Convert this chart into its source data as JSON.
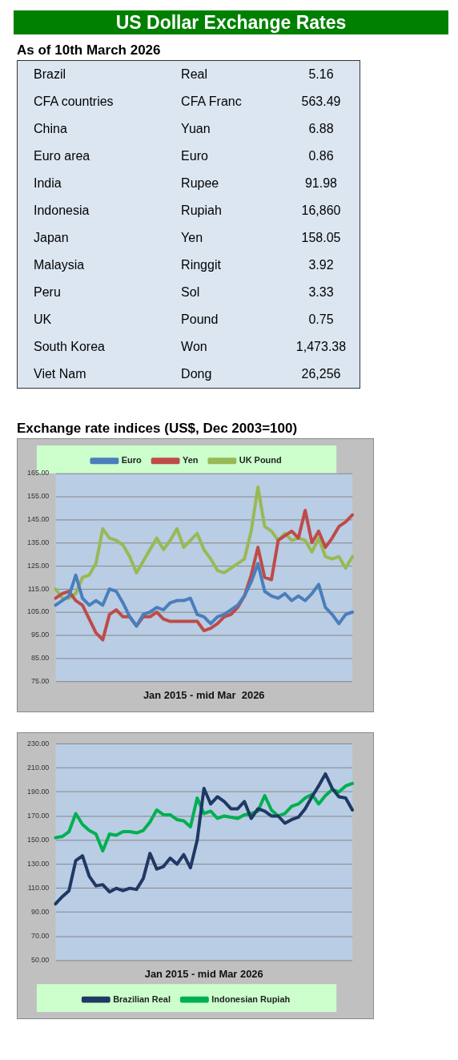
{
  "chart_data": [
    {
      "type": "other",
      "title": "US Dollar Exchange Rates",
      "subtitle": "As of 10th March 2026",
      "annotations": [
        "Brazil",
        "Real",
        "5.16",
        "CFA countries",
        "CFA Franc",
        "563.49",
        "China",
        "Yuan",
        "6.88",
        "Euro area",
        "Euro",
        "0.86",
        "India",
        "Rupee",
        "91.98",
        "Indonesia",
        "Rupiah",
        "16,860",
        "Japan",
        "Yen",
        "158.05",
        "Malaysia",
        "Ringgit",
        "3.92",
        "Peru",
        "Sol",
        "3.33",
        "UK",
        "Pound",
        "0.75",
        "South Korea",
        "Won",
        "1,473.38",
        "Viet Nam",
        "Dong",
        "26,256"
      ]
    },
    {
      "type": "line",
      "title": "Exchange rate indices (US$, Dec 2003=100)",
      "xlabel": "Jan 2015 - mid Mar  2026",
      "categories": [
        null,
        null,
        null,
        null,
        null,
        null,
        null,
        null,
        null,
        null,
        null,
        null,
        null,
        null,
        null,
        null,
        null,
        null,
        null,
        null,
        null,
        null,
        null,
        null,
        null,
        null,
        null,
        null,
        null,
        null,
        null,
        null,
        null,
        null,
        null,
        null,
        null,
        null,
        null,
        null,
        null,
        null,
        null,
        null,
        null
      ],
      "series": [
        {
          "name": "Euro",
          "color": "#4a7ebb",
          "values": [
            108,
            110,
            112,
            121,
            111,
            108,
            110,
            108,
            115,
            114,
            109,
            103,
            99,
            104,
            105,
            107,
            106,
            109,
            110,
            110,
            111,
            104,
            103,
            100,
            103,
            104,
            106,
            108,
            112,
            118,
            126,
            114,
            112,
            111,
            113,
            110,
            112,
            110,
            113,
            117,
            107,
            104,
            100,
            104,
            105
          ]
        },
        {
          "name": "Yen",
          "color": "#be4b48",
          "values": [
            111,
            113,
            114,
            110,
            108,
            102,
            96,
            93,
            104,
            106,
            103,
            103,
            99,
            103,
            103,
            105,
            102,
            101,
            101,
            101,
            101,
            101,
            97,
            98,
            100,
            103,
            104,
            107,
            112,
            121,
            133,
            120,
            119,
            136,
            138,
            140,
            137,
            149,
            135,
            140,
            133,
            137,
            142,
            144,
            147
          ]
        },
        {
          "name": "UK Pound",
          "color": "#98b954",
          "values": [
            115,
            111,
            111,
            113,
            120,
            121,
            126,
            141,
            137,
            136,
            134,
            129,
            122,
            127,
            132,
            137,
            132,
            136,
            141,
            133,
            136,
            139,
            132,
            128,
            123,
            122,
            124,
            126,
            128,
            140,
            159,
            142,
            140,
            136,
            139,
            136,
            137,
            136,
            131,
            137,
            129,
            128,
            129,
            124,
            129
          ]
        }
      ],
      "ylim": [
        75,
        165
      ],
      "yticks": [
        {
          "value": 75,
          "label": "75.00"
        },
        {
          "value": 85,
          "label": "85.00"
        },
        {
          "value": 95,
          "label": "95.00"
        },
        {
          "value": 105,
          "label": "105.00"
        },
        {
          "value": 115,
          "label": "115.00"
        },
        {
          "value": 125,
          "label": "125.00"
        },
        {
          "value": 135,
          "label": "135.00"
        },
        {
          "value": 145,
          "label": "145.00"
        },
        {
          "value": 155,
          "label": "155.00"
        },
        {
          "value": 165,
          "label": "165.00"
        }
      ],
      "grid": "y",
      "legend": "top",
      "marker": "none",
      "line_style": "solid",
      "tick_labels": "y"
    },
    {
      "type": "line",
      "xlabel": "Jan 2015 - mid Mar 2026",
      "categories": [
        null,
        null,
        null,
        null,
        null,
        null,
        null,
        null,
        null,
        null,
        null,
        null,
        null,
        null,
        null,
        null,
        null,
        null,
        null,
        null,
        null,
        null,
        null,
        null,
        null,
        null,
        null,
        null,
        null,
        null,
        null,
        null,
        null,
        null,
        null,
        null,
        null,
        null,
        null,
        null,
        null,
        null,
        null,
        null,
        null
      ],
      "series": [
        {
          "name": "Brazilian Real",
          "color": "#1f3864",
          "values": [
            97,
            103,
            108,
            133,
            137,
            120,
            112,
            113,
            107,
            110,
            108,
            110,
            109,
            118,
            139,
            126,
            128,
            135,
            130,
            138,
            127,
            150,
            193,
            180,
            186,
            182,
            176,
            176,
            182,
            168,
            176,
            174,
            170,
            170,
            164,
            167,
            169,
            176,
            186,
            195,
            205,
            193,
            186,
            185,
            175
          ]
        },
        {
          "name": "Indonesian Rupiah",
          "color": "#00b050",
          "values": [
            152,
            153,
            157,
            172,
            163,
            158,
            155,
            141,
            155,
            154,
            157,
            157,
            156,
            158,
            165,
            175,
            171,
            171,
            167,
            166,
            161,
            185,
            172,
            174,
            168,
            170,
            169,
            168,
            171,
            172,
            174,
            187,
            175,
            170,
            172,
            178,
            180,
            185,
            188,
            180,
            187,
            192,
            190,
            195,
            197
          ]
        }
      ],
      "ylim": [
        50,
        230
      ],
      "yticks": [
        {
          "value": 50,
          "label": "50.00"
        },
        {
          "value": 70,
          "label": "70.00"
        },
        {
          "value": 90,
          "label": "90.00"
        },
        {
          "value": 110,
          "label": "110.00"
        },
        {
          "value": 130,
          "label": "130.00"
        },
        {
          "value": 150,
          "label": "150.00"
        },
        {
          "value": 170,
          "label": "170.00"
        },
        {
          "value": 190,
          "label": "190.00"
        },
        {
          "value": 210,
          "label": "210.00"
        },
        {
          "value": 230,
          "label": "230.00"
        }
      ],
      "grid": "y",
      "legend": "bottom",
      "marker": "none",
      "line_style": "solid",
      "tick_labels": "y"
    }
  ]
}
